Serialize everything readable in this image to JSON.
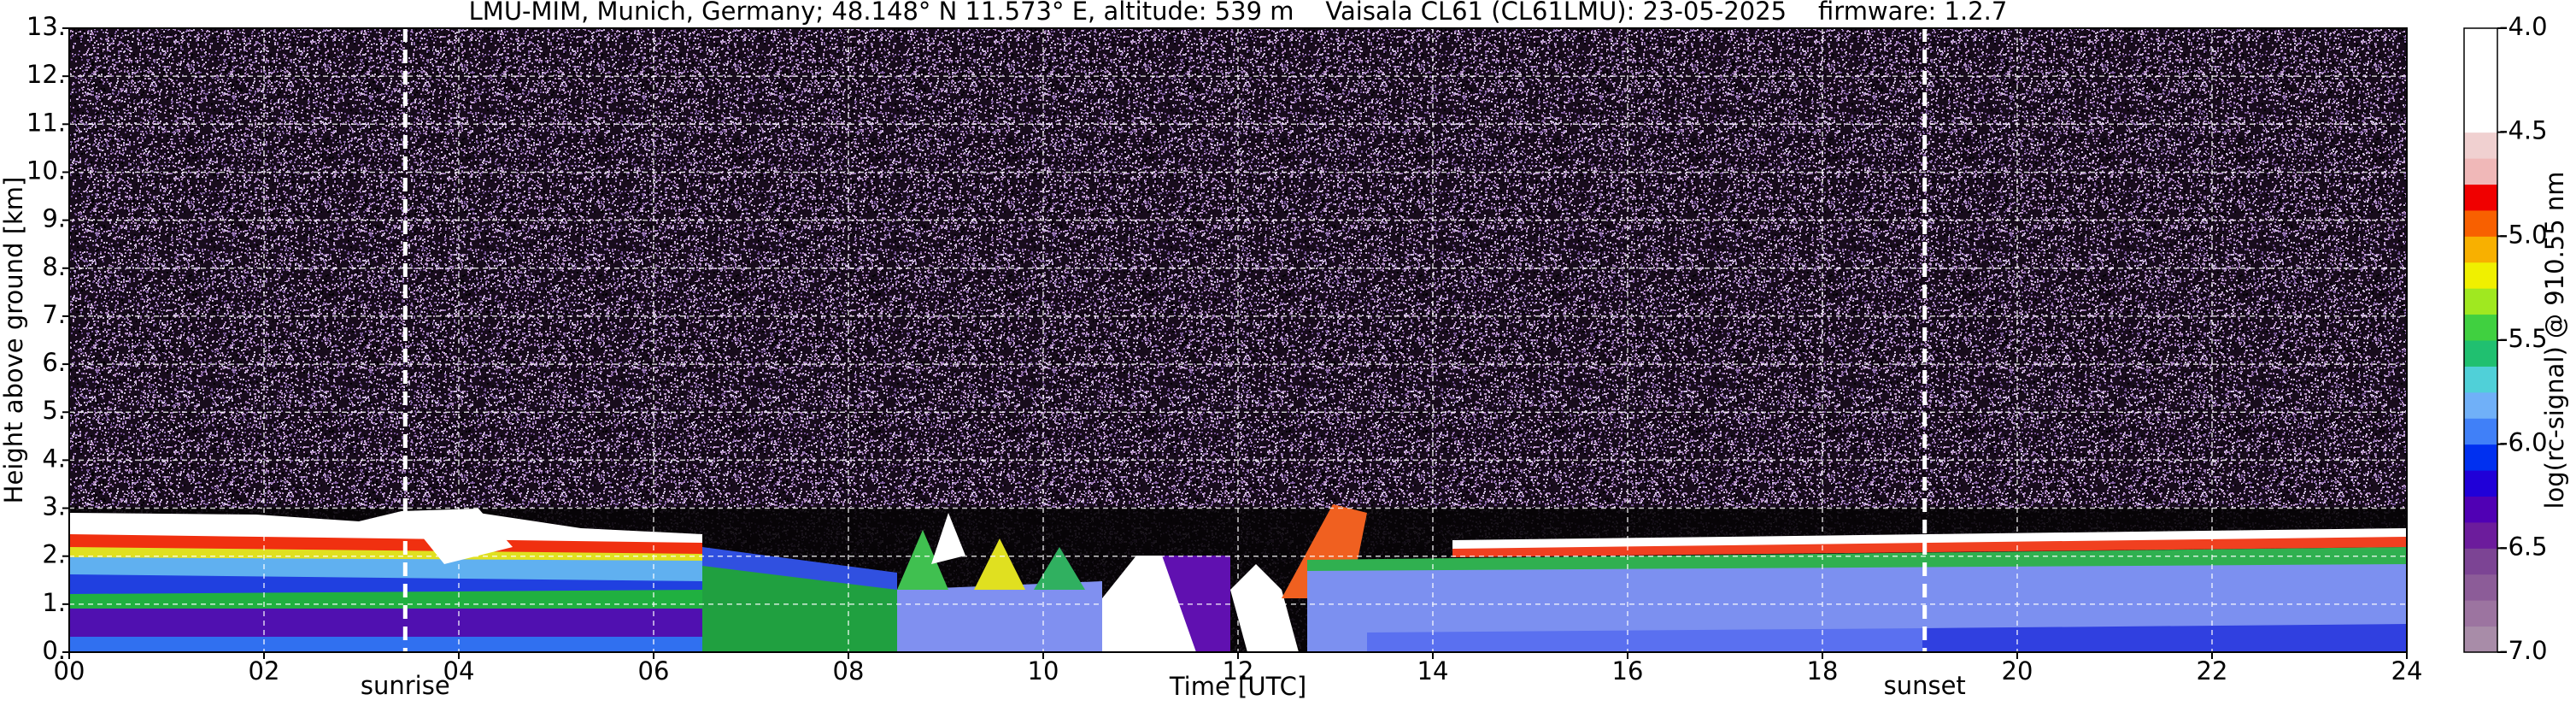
{
  "chart_data": {
    "type": "heatmap",
    "title": "LMU-MIM, Munich, Germany; 48.148° N 11.573° E, altitude: 539 m    Vaisala CL61 (CL61LMU): 23-05-2025    firmware: 1.2.7",
    "x_label": "Time [UTC]",
    "y_label": "Height above ground [km]",
    "xlim": [
      0,
      24
    ],
    "xticks": [
      {
        "value": 0,
        "label": "00"
      },
      {
        "value": 2,
        "label": "02"
      },
      {
        "value": 4,
        "label": "04"
      },
      {
        "value": 6,
        "label": "06"
      },
      {
        "value": 8,
        "label": "08"
      },
      10,
      12,
      14,
      16,
      18,
      20,
      22,
      24
    ],
    "ylim": [
      0,
      13
    ],
    "yticks": [
      {
        "value": 0,
        "label": "0."
      },
      {
        "value": 1,
        "label": "1."
      },
      {
        "value": 2,
        "label": "2."
      },
      {
        "value": 3,
        "label": "3."
      },
      {
        "value": 4,
        "label": "4."
      },
      {
        "value": 5,
        "label": "5."
      },
      {
        "value": 6,
        "label": "6."
      },
      {
        "value": 7,
        "label": "7."
      },
      {
        "value": 8,
        "label": "8."
      },
      {
        "value": 9,
        "label": "9."
      },
      {
        "value": 10,
        "label": "10."
      },
      {
        "value": 11,
        "label": "11."
      },
      {
        "value": 12,
        "label": "12."
      },
      {
        "value": 13,
        "label": "13."
      }
    ],
    "grid": true,
    "annotations": [
      {
        "x": 3.45,
        "label": "sunrise"
      },
      {
        "x": 19.05,
        "label": "sunset"
      }
    ],
    "colorbar": {
      "label": "log(rc-signal) @ 910.55 nm",
      "clim": [
        -7,
        -4
      ],
      "ticks": [
        {
          "value": -7,
          "label": "-7.0"
        },
        -6.5,
        {
          "value": -6,
          "label": "-6.0"
        },
        -5.5,
        {
          "value": -5,
          "label": "-5.0"
        },
        -4.5,
        {
          "value": -4,
          "label": "-4.0"
        }
      ],
      "colors": [
        "#a88ca8",
        "#9c74a0",
        "#8c5c98",
        "#7c4494",
        "#6c1c9c",
        "#5000b4",
        "#2000d8",
        "#0030f0",
        "#4080f8",
        "#70b0f8",
        "#50d0d8",
        "#20c070",
        "#40d040",
        "#a0e820",
        "#f0f000",
        "#f8b000",
        "#f86000",
        "#f00000",
        "#f0b8b8",
        "#f0d0d0",
        "#ffffff",
        "#ffffff",
        "#ffffff",
        "#ffffff"
      ]
    }
  }
}
